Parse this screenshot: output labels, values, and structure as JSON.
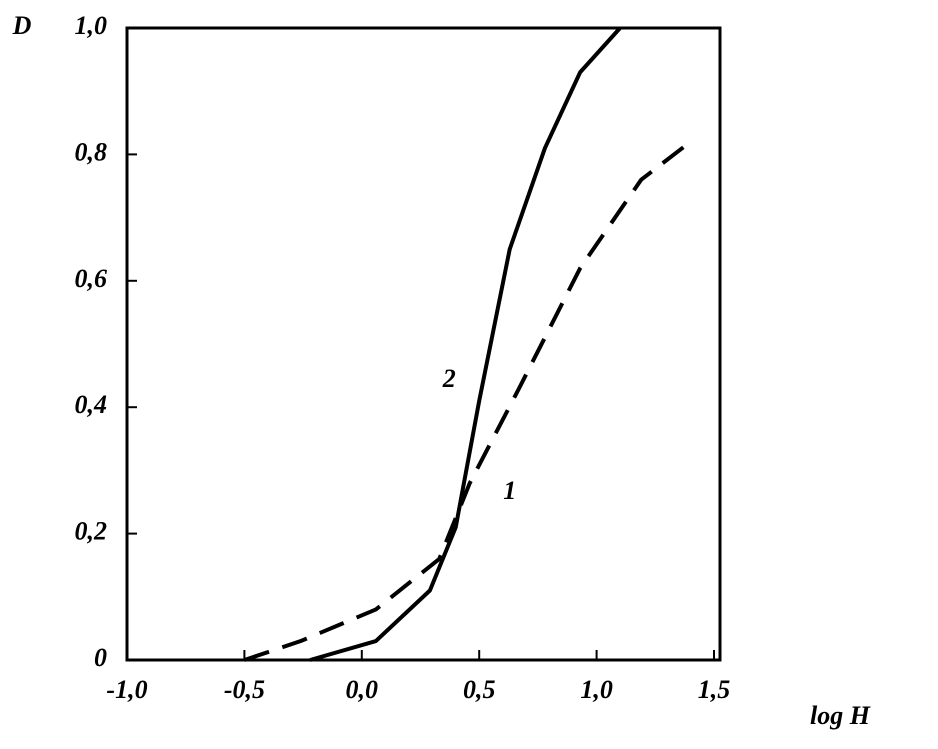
{
  "chart_data": {
    "type": "line",
    "ylabel": "D",
    "xlabel": "log H",
    "xlim": [
      -1.0,
      1.5
    ],
    "ylim": [
      0,
      1.0
    ],
    "xticks": [
      {
        "value": -1.0,
        "label": "-1,0"
      },
      {
        "value": -0.5,
        "label": "-0,5"
      },
      {
        "value": 0.0,
        "label": "0,0"
      },
      {
        "value": 0.5,
        "label": "0,5"
      },
      {
        "value": 1.0,
        "label": "1,0"
      },
      {
        "value": 1.5,
        "label": "1,5"
      }
    ],
    "yticks": [
      0,
      {
        "value": 0.2,
        "label": "0,2"
      },
      {
        "value": 0.4,
        "label": "0,4"
      },
      {
        "value": 0.6,
        "label": "0,6"
      },
      {
        "value": 0.8,
        "label": "0,8"
      },
      {
        "value": 1.0,
        "label": "1,0"
      }
    ],
    "series": [
      {
        "name": "1",
        "color": "#000000",
        "dash": true,
        "x": [
          -0.5,
          -0.26,
          0.06,
          0.33,
          0.46,
          0.67,
          0.93,
          1.19,
          1.4
        ],
        "values": [
          0,
          0.03,
          0.08,
          0.16,
          0.28,
          0.43,
          0.62,
          0.76,
          0.82
        ]
      },
      {
        "name": "2",
        "color": "#000000",
        "dash": false,
        "x": [
          -0.22,
          0.06,
          0.29,
          0.4,
          0.5,
          0.63,
          0.78,
          0.93,
          1.1
        ],
        "values": [
          0,
          0.03,
          0.11,
          0.21,
          0.41,
          0.65,
          0.81,
          0.93,
          1.0
        ]
      }
    ]
  }
}
